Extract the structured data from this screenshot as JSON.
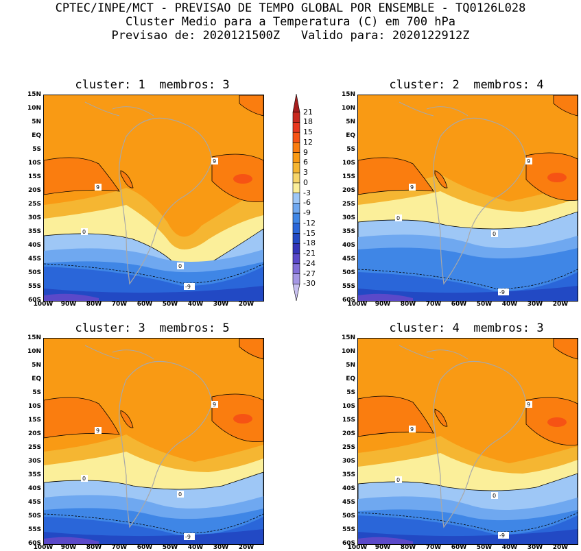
{
  "title": {
    "line1": "CPTEC/INPE/MCT - PREVISAO DE TEMPO GLOBAL POR ENSEMBLE - TQ0126L028",
    "line2": "Cluster Medio para a Temperatura (C) em 700 hPa",
    "line3": "Previsao de: 2020121500Z   Valido para: 2020122912Z"
  },
  "panels": [
    {
      "title": "cluster: 1  membros: 3"
    },
    {
      "title": "cluster: 2  membros: 4"
    },
    {
      "title": "cluster: 3  membros: 5"
    },
    {
      "title": "cluster: 4  membros: 3"
    }
  ],
  "lat_ticks": [
    "15N",
    "10N",
    "5N",
    "EQ",
    "5S",
    "10S",
    "15S",
    "20S",
    "25S",
    "30S",
    "35S",
    "40S",
    "45S",
    "50S",
    "55S",
    "60S"
  ],
  "lon_ticks": [
    "100W",
    "90W",
    "80W",
    "70W",
    "60W",
    "50W",
    "40W",
    "30W",
    "20W"
  ],
  "colorbar": {
    "levels": [
      "21",
      "18",
      "15",
      "12",
      "9",
      "6",
      "3",
      "0",
      "-3",
      "-6",
      "-9",
      "-12",
      "-15",
      "-18",
      "-21",
      "-24",
      "-27",
      "-30"
    ],
    "colors": [
      "#a51d1d",
      "#c8281e",
      "#e8371e",
      "#f65314",
      "#fa7d0f",
      "#f99a14",
      "#f5b632",
      "#f7d66a",
      "#fbef9a",
      "#9ec7f6",
      "#6fa8f0",
      "#3f86e6",
      "#2a66d9",
      "#2249c4",
      "#3434b8",
      "#5b49c9",
      "#826fd8",
      "#a597e4",
      "#c8c0f0"
    ]
  },
  "contour_labels": {
    "warm": "9",
    "zero": "0",
    "cold": "-9"
  },
  "map_colors": {
    "land_outline": "#a8a8a8",
    "contour_line": "#000000"
  }
}
